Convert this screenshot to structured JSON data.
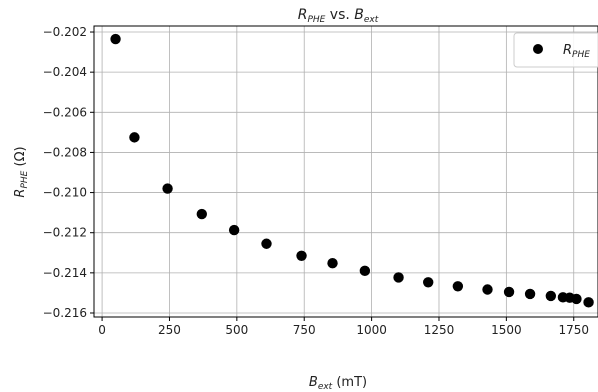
{
  "chart_data": {
    "type": "scatter",
    "title": {
      "main": "R",
      "main_sub": "PHE",
      "mid": " vs. ",
      "end": "B",
      "end_sub": "ext"
    },
    "xlabel": {
      "main": "B",
      "sub": "ext",
      "unit": " (mT)"
    },
    "ylabel": {
      "main": "R",
      "sub": "PHE",
      "unit": " (Ω)"
    },
    "xlim": [
      -30,
      1840
    ],
    "ylim": [
      -0.2162,
      -0.2017
    ],
    "xticks": [
      0,
      250,
      500,
      750,
      1000,
      1250,
      1500,
      1750
    ],
    "xtick_labels": [
      "0",
      "250",
      "500",
      "750",
      "1000",
      "1250",
      "1500",
      "1750"
    ],
    "yticks": [
      -0.202,
      -0.204,
      -0.206,
      -0.208,
      -0.21,
      -0.212,
      -0.214,
      -0.216
    ],
    "ytick_labels": [
      "−0.202",
      "−0.204",
      "−0.206",
      "−0.208",
      "−0.210",
      "−0.212",
      "−0.214",
      "−0.216"
    ],
    "grid": true,
    "legend_position": "top-right",
    "series": [
      {
        "name": {
          "main": "R",
          "sub": "PHE"
        },
        "color": "#000000",
        "points": [
          [
            50,
            -0.20235
          ],
          [
            120,
            -0.20725
          ],
          [
            243,
            -0.2098
          ],
          [
            370,
            -0.21107
          ],
          [
            490,
            -0.21187
          ],
          [
            610,
            -0.21255
          ],
          [
            740,
            -0.21315
          ],
          [
            855,
            -0.21352
          ],
          [
            975,
            -0.2139
          ],
          [
            1100,
            -0.21423
          ],
          [
            1210,
            -0.21447
          ],
          [
            1320,
            -0.21467
          ],
          [
            1430,
            -0.21483
          ],
          [
            1510,
            -0.21495
          ],
          [
            1588,
            -0.21505
          ],
          [
            1665,
            -0.21515
          ],
          [
            1710,
            -0.21522
          ],
          [
            1735,
            -0.21524
          ],
          [
            1760,
            -0.2153
          ],
          [
            1805,
            -0.21547
          ]
        ]
      }
    ]
  }
}
